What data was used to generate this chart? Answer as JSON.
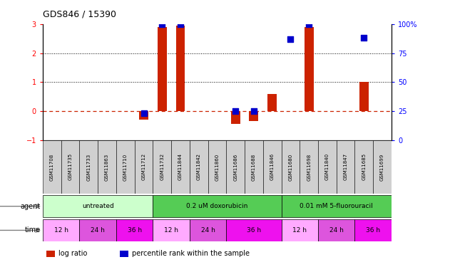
{
  "title": "GDS846 / 15390",
  "samples": [
    "GSM11708",
    "GSM11735",
    "GSM11733",
    "GSM11863",
    "GSM11710",
    "GSM11712",
    "GSM11732",
    "GSM11844",
    "GSM11842",
    "GSM11860",
    "GSM11686",
    "GSM11688",
    "GSM11846",
    "GSM11680",
    "GSM11698",
    "GSM11840",
    "GSM11847",
    "GSM11685",
    "GSM11699"
  ],
  "log_ratio": [
    0,
    0,
    0,
    0,
    0,
    -0.3,
    2.9,
    2.95,
    0,
    0,
    -0.45,
    -0.35,
    0.6,
    0,
    2.9,
    0,
    0,
    1.0,
    0
  ],
  "percentile": [
    null,
    null,
    null,
    null,
    null,
    23,
    100,
    100,
    null,
    null,
    25,
    25,
    null,
    87,
    100,
    null,
    null,
    88,
    null
  ],
  "agents": [
    {
      "label": "untreated",
      "start": 0,
      "end": 6,
      "color": "#ccffcc"
    },
    {
      "label": "0.2 uM doxorubicin",
      "start": 6,
      "end": 13,
      "color": "#55cc55"
    },
    {
      "label": "0.01 mM 5-fluorouracil",
      "start": 13,
      "end": 19,
      "color": "#55cc55"
    }
  ],
  "times": [
    {
      "label": "12 h",
      "start": 0,
      "end": 2,
      "color": "#ffaaff"
    },
    {
      "label": "24 h",
      "start": 2,
      "end": 4,
      "color": "#dd55dd"
    },
    {
      "label": "36 h",
      "start": 4,
      "end": 6,
      "color": "#ee11ee"
    },
    {
      "label": "12 h",
      "start": 6,
      "end": 8,
      "color": "#ffaaff"
    },
    {
      "label": "24 h",
      "start": 8,
      "end": 10,
      "color": "#dd55dd"
    },
    {
      "label": "36 h",
      "start": 10,
      "end": 13,
      "color": "#ee11ee"
    },
    {
      "label": "12 h",
      "start": 13,
      "end": 15,
      "color": "#ffaaff"
    },
    {
      "label": "24 h",
      "start": 15,
      "end": 17,
      "color": "#dd55dd"
    },
    {
      "label": "36 h",
      "start": 17,
      "end": 19,
      "color": "#ee11ee"
    }
  ],
  "bar_color": "#cc2200",
  "dot_color": "#0000cc",
  "ylim_left": [
    -1,
    3
  ],
  "ylim_right": [
    0,
    100
  ],
  "yticks_left": [
    -1,
    0,
    1,
    2,
    3
  ],
  "yticks_right": [
    0,
    25,
    50,
    75,
    100
  ],
  "bar_width": 0.5,
  "dot_size": 30
}
